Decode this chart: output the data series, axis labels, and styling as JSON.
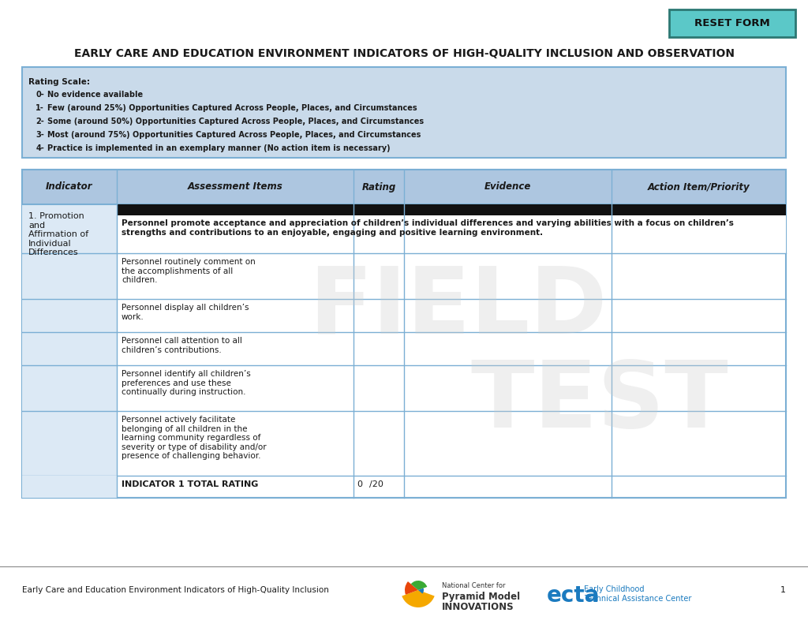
{
  "title": "EARLY CARE AND EDUCATION ENVIRONMENT INDICATORS OF HIGH-QUALITY INCLUSION AND OBSERVATION",
  "reset_btn_text": "RESET FORM",
  "reset_btn_color": "#5bc8c8",
  "reset_btn_border": "#2c7873",
  "rating_scale_title": "Rating Scale:",
  "rating_scale_bg": "#c9daea",
  "rating_scale_border": "#7bafd4",
  "rating_items": [
    [
      "0-",
      "No evidence available"
    ],
    [
      "1-",
      "Few (around 25%) Opportunities Captured Across People, Places, and Circumstances"
    ],
    [
      "2-",
      "Some (around 50%) Opportunities Captured Across People, Places, and Circumstances"
    ],
    [
      "3-",
      "Most (around 75%) Opportunities Captured Across People, Places, and Circumstances"
    ],
    [
      "4-",
      "Practice is implemented in an exemplary manner (No action item is necessary)"
    ]
  ],
  "header_bg": "#adc6e0",
  "header_border": "#7bafd4",
  "header_cols": [
    "Indicator",
    "Assessment Items",
    "Rating",
    "Evidence",
    "Action Item/Priority"
  ],
  "indicator_label": "1. Promotion\nand\nAffirmation of\nIndividual\nDifferences",
  "indicator_bg": "#dce9f5",
  "intro_text": "Personnel promote acceptance and appreciation of children’s individual differences and varying abilities with a focus on children’s\nstrengths and contributions to an enjoyable, engaging and positive learning environment.",
  "assessment_items": [
    "Personnel routinely comment on\nthe accomplishments of all\nchildren.",
    "Personnel display all children’s\nwork.",
    "Personnel call attention to all\nchildren’s contributions.",
    "Personnel identify all children’s\npreferences and use these\ncontinually during instruction.",
    "Personnel actively facilitate\nbelonging of all children in the\nlearning community regardless of\nseverity or type of disability and/or\npresence of challenging behavior."
  ],
  "total_row_label": "INDICATOR 1 TOTAL RATING",
  "total_row_value": "0    /20",
  "field_test_color": "#cccccc",
  "footer_text": "Early Care and Education Environment Indicators of High-Quality Inclusion",
  "page_number": "1",
  "bg_color": "#ffffff",
  "table_border_color": "#7bafd4",
  "text_color": "#1a1a1a",
  "pmi_colors": [
    "#f5a800",
    "#e8450a",
    "#3aaa35",
    "#1a7abf"
  ],
  "ecta_color": "#1a7abf",
  "ecta_green": "#3aaa35"
}
